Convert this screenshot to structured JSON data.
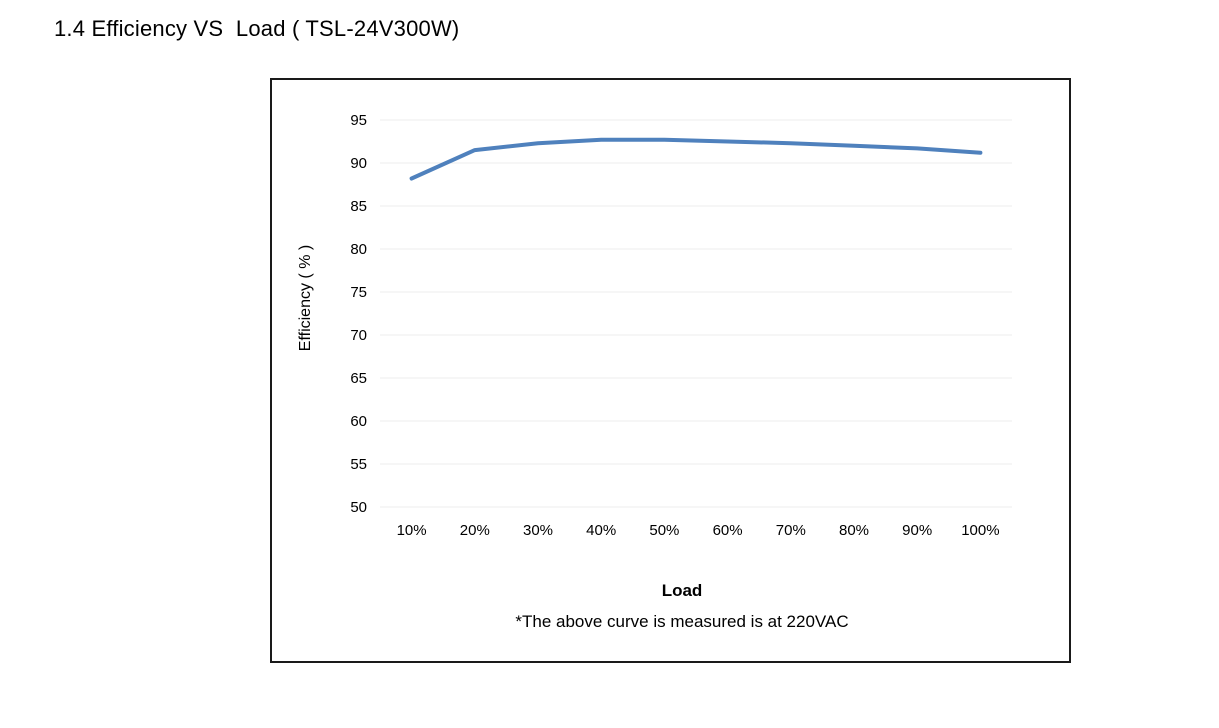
{
  "heading": "1.4 Efficiency VS  Load ( TSL-24V300W)",
  "chart_data": {
    "type": "line",
    "title": "",
    "xlabel": "Load",
    "ylabel": "Efficiency ( % )",
    "categories": [
      "10%",
      "20%",
      "30%",
      "40%",
      "50%",
      "60%",
      "70%",
      "80%",
      "90%",
      "100%"
    ],
    "series": [
      {
        "values": [
          88.2,
          91.5,
          92.3,
          92.7,
          92.7,
          92.5,
          92.3,
          92.0,
          91.7,
          91.2
        ]
      }
    ],
    "ylim": [
      50,
      95
    ],
    "yticks": [
      50,
      55,
      60,
      65,
      70,
      75,
      80,
      85,
      90,
      95
    ],
    "grid": true,
    "legend": "none",
    "line_color": "#4f81bd",
    "note": "*The above curve is measured is at 220VAC"
  }
}
